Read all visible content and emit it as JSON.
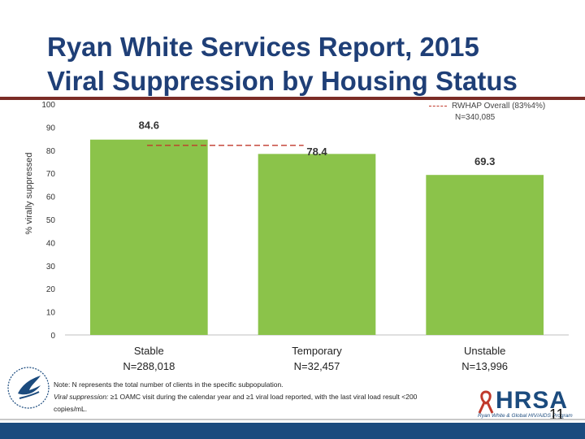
{
  "title_line1": "Ryan White Services Report, 2015",
  "title_line2": "Viral Suppression by Housing Status",
  "legend": {
    "label": "RWHAP Overall (83%4%)",
    "n": "N=340,085"
  },
  "chart_data": {
    "type": "bar",
    "title": "Viral Suppression by Housing Status",
    "ylabel": "% virally suppressed",
    "xlabel": "",
    "ylim": [
      0,
      100
    ],
    "yticks": [
      0,
      10,
      20,
      30,
      40,
      50,
      60,
      70,
      80,
      90,
      100
    ],
    "categories": [
      {
        "line1": "Stable",
        "line2": "N=288,018"
      },
      {
        "line1": "Temporary",
        "line2": "N=32,457"
      },
      {
        "line1": "Unstable",
        "line2": "N=13,996"
      }
    ],
    "values": [
      84.6,
      78.4,
      69.3
    ],
    "value_labels": [
      "84.6",
      "78.4",
      "69.3"
    ],
    "reference_line": {
      "name": "RWHAP Overall",
      "value": 82.8
    },
    "bar_color": "#8bc34a",
    "reference_color": "#c0392b"
  },
  "footer": {
    "note_line1": "Note: N represents the total number of clients in the specific subpopulation.",
    "note_term": "Viral suppression:",
    "note_line2_rest": " ≥1 OAMC visit during the calendar year and ≥1 viral load reported, with the last viral load result <200",
    "note_line3": "copies/mL.",
    "hrsa": "HRSA",
    "hrsa_sub": "Ryan White & Global HIV/AIDS Program",
    "page_number": "11"
  }
}
